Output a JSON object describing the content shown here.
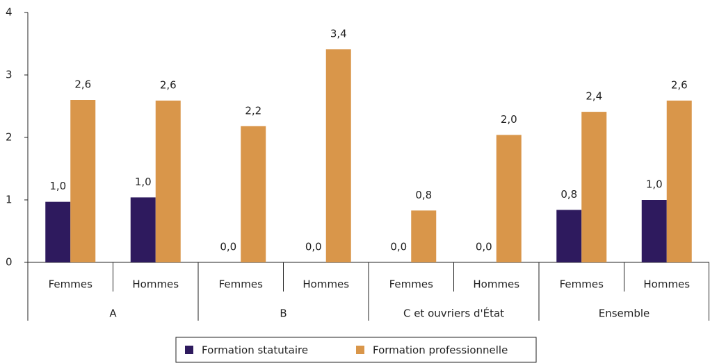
{
  "chart_data": {
    "type": "bar",
    "categories": [
      "Femmes",
      "Hommes",
      "Femmes",
      "Hommes",
      "Femmes",
      "Hommes",
      "Femmes",
      "Hommes"
    ],
    "groups": [
      "A",
      "B",
      "C et ouvriers d'État",
      "Ensemble"
    ],
    "series": [
      {
        "name": "Formation statutaire",
        "color": "#2e1a5e",
        "values": [
          0.97,
          1.04,
          0,
          0,
          0,
          0,
          0.84,
          1.0
        ],
        "value_labels": [
          "1,0",
          "1,0",
          "0,0",
          "0,0",
          "0,0",
          "0,0",
          "0,8",
          "1,0"
        ]
      },
      {
        "name": "Formation professionnelle",
        "color": "#d9964a",
        "values": [
          2.6,
          2.59,
          2.18,
          3.41,
          0.83,
          2.04,
          2.41,
          2.59
        ],
        "value_labels": [
          "2,6",
          "2,6",
          "2,2",
          "3,4",
          "0,8",
          "2,0",
          "2,4",
          "2,6"
        ]
      }
    ],
    "ylim": [
      0,
      4
    ],
    "yticks": [
      0,
      1,
      2,
      3,
      4
    ],
    "grid": false,
    "legend": "bottom"
  }
}
